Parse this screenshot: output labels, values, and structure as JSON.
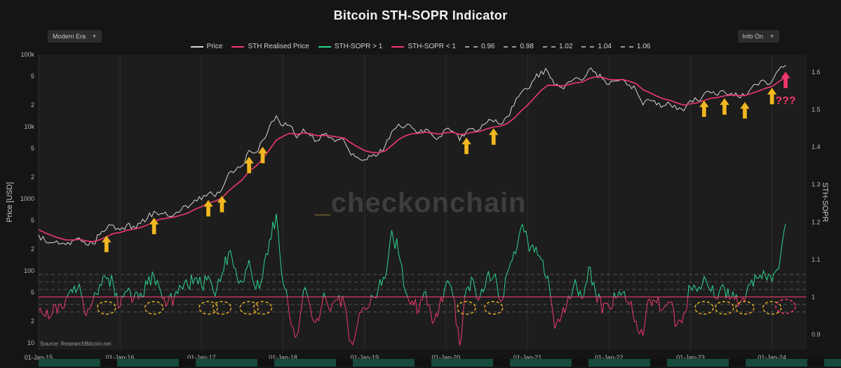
{
  "header": {
    "title": "Bitcoin STH-SOPR Indicator",
    "era_dropdown": {
      "label": "Modern Era",
      "caret": "▼"
    },
    "info_dropdown": {
      "label": "Info On",
      "caret": "▼"
    }
  },
  "legend": {
    "items": [
      {
        "label": "Price",
        "color": "#d6d6d6",
        "dash": "solid"
      },
      {
        "label": "STH Realised Price",
        "color": "#f0386e",
        "dash": "solid"
      },
      {
        "label": "STH-SOPR > 1",
        "color": "#2bd48e",
        "dash": "solid"
      },
      {
        "label": "STH-SOPR < 1",
        "color": "#f0386e",
        "dash": "solid"
      },
      {
        "label": "0.96",
        "color": "#9a9a9a",
        "dash": "dashed"
      },
      {
        "label": "0.98",
        "color": "#9a9a9a",
        "dash": "dashed"
      },
      {
        "label": "1.02",
        "color": "#9a9a9a",
        "dash": "dashed"
      },
      {
        "label": "1.04",
        "color": "#9a9a9a",
        "dash": "dashed"
      },
      {
        "label": "1.06",
        "color": "#9a9a9a",
        "dash": "dashed"
      }
    ]
  },
  "watermark": {
    "prefix": "_",
    "name": "checkonchain"
  },
  "source": "Source: ResearchBitcoin.net",
  "chart_data": {
    "type": "line",
    "title": "Bitcoin STH-SOPR Indicator",
    "x_unit": "month",
    "x_start": "Jan-2015",
    "x_ticks": [
      {
        "month": 0,
        "label": "01-Jan-15"
      },
      {
        "month": 12,
        "label": "01-Jan-16"
      },
      {
        "month": 24,
        "label": "01-Jan-17"
      },
      {
        "month": 36,
        "label": "01-Jan-18"
      },
      {
        "month": 48,
        "label": "01-Jan-19"
      },
      {
        "month": 60,
        "label": "01-Jan-20"
      },
      {
        "month": 72,
        "label": "01-Jan-21"
      },
      {
        "month": 84,
        "label": "01-Jan-22"
      },
      {
        "month": 96,
        "label": "01-Jan-23"
      },
      {
        "month": 108,
        "label": "01-Jan-24"
      }
    ],
    "left_axis": {
      "label": "Price [USD]",
      "scale": "log",
      "range": [
        10,
        100000
      ],
      "ticks": [
        {
          "value": 100000,
          "label": "100k"
        },
        {
          "value": 50000,
          "label": "5"
        },
        {
          "value": 20000,
          "label": "2"
        },
        {
          "value": 10000,
          "label": "10k"
        },
        {
          "value": 5000,
          "label": "5"
        },
        {
          "value": 2000,
          "label": "2"
        },
        {
          "value": 1000,
          "label": "1000"
        },
        {
          "value": 500,
          "label": "5"
        },
        {
          "value": 200,
          "label": "2"
        },
        {
          "value": 100,
          "label": "100"
        },
        {
          "value": 50,
          "label": "5"
        },
        {
          "value": 20,
          "label": "2"
        },
        {
          "value": 10,
          "label": "10"
        }
      ]
    },
    "right_axis": {
      "label": "STH-SOPR",
      "scale": "linear",
      "range": [
        0.9,
        1.6
      ],
      "ticks": [
        {
          "value": 0.9,
          "label": "0.9"
        },
        {
          "value": 1,
          "label": "1"
        },
        {
          "value": 1.1,
          "label": "1.1"
        },
        {
          "value": 1.2,
          "label": "1.2"
        },
        {
          "value": 1.3,
          "label": "1.3"
        },
        {
          "value": 1.4,
          "label": "1.4"
        },
        {
          "value": 1.5,
          "label": "1.5"
        },
        {
          "value": 1.6,
          "label": "1.6"
        }
      ]
    },
    "series": [
      {
        "name": "Price",
        "axis": "left",
        "color": "#d6d6d6",
        "values": [
          315,
          255,
          245,
          235,
          230,
          265,
          285,
          230,
          236,
          315,
          378,
          430,
          368,
          437,
          416,
          450,
          530,
          670,
          625,
          575,
          610,
          700,
          745,
          960,
          970,
          1180,
          1070,
          1350,
          2280,
          2480,
          2875,
          4700,
          4360,
          6470,
          10200,
          14100,
          10200,
          10400,
          6970,
          9240,
          7500,
          6400,
          7780,
          7040,
          6620,
          6320,
          4020,
          3740,
          3460,
          3850,
          4100,
          5350,
          8570,
          10820,
          10080,
          9630,
          8290,
          9200,
          7570,
          7190,
          9350,
          8600,
          6440,
          8660,
          9460,
          9140,
          11350,
          11660,
          10780,
          13800,
          19700,
          29000,
          33100,
          45200,
          58800,
          57750,
          37300,
          35000,
          41600,
          47200,
          43800,
          61300,
          57000,
          46300,
          38500,
          43200,
          45500,
          37700,
          31800,
          20000,
          23300,
          20050,
          19400,
          20500,
          17200,
          16550,
          23100,
          23150,
          28500,
          29270,
          27200,
          30500,
          29200,
          25900,
          27000,
          34700,
          37700,
          42300,
          42600,
          61200,
          71300
        ]
      },
      {
        "name": "STH-SOPR",
        "axis": "right",
        "color_above_1": "#2bd48e",
        "color_below_1": "#f0386e",
        "values": [
          0.97,
          0.95,
          0.96,
          0.98,
          0.99,
          1.01,
          1.03,
          0.95,
          0.99,
          1.03,
          1.05,
          1.04,
          0.97,
          1.02,
          1.0,
          1.01,
          1.03,
          1.06,
          1.02,
          0.98,
          1.0,
          1.02,
          1.03,
          1.05,
          1.03,
          1.05,
          1.0,
          1.06,
          1.12,
          1.07,
          1.04,
          1.1,
          1.02,
          1.06,
          1.15,
          1.22,
          1.04,
          0.95,
          0.89,
          1.02,
          0.97,
          0.94,
          1.01,
          0.96,
          0.99,
          0.98,
          0.88,
          0.93,
          0.97,
          1.0,
          1.02,
          1.05,
          1.18,
          1.12,
          1.02,
          0.99,
          0.96,
          1.02,
          0.93,
          0.97,
          1.04,
          1.01,
          0.87,
          1.02,
          1.04,
          1.0,
          1.05,
          1.06,
          0.99,
          1.06,
          1.12,
          1.18,
          1.15,
          1.12,
          1.1,
          1.06,
          0.92,
          0.95,
          1.0,
          1.05,
          0.99,
          1.08,
          1.02,
          0.96,
          0.97,
          1.0,
          1.01,
          0.98,
          0.93,
          0.9,
          1.0,
          0.99,
          0.97,
          0.99,
          0.92,
          0.96,
          1.03,
          1.02,
          1.05,
          1.02,
          0.99,
          1.02,
          1.0,
          0.98,
          0.99,
          1.04,
          1.05,
          1.06,
          1.04,
          1.08,
          1.2
        ]
      },
      {
        "name": "STH Realised Price",
        "axis": "left",
        "color": "#f0386e",
        "derivation": "smoothed trace of Price series"
      }
    ],
    "sopr_thresholds": [
      0.96,
      0.98,
      1.02,
      1.04,
      1.06
    ],
    "sopr_baseline": 1,
    "colors": {
      "price": "#d6d6d6",
      "realised": "#f0386e",
      "sopr_above": "#2bd48e",
      "sopr_below": "#f0386e",
      "arrow": "#f2b722",
      "grid": "#2e2e2e",
      "threshold": "#8a8a8a",
      "plot_bg": "#1d1d1d"
    },
    "annotations": {
      "arrow_months": [
        10,
        17,
        25,
        27,
        31,
        33,
        63,
        67,
        98,
        101,
        104,
        108
      ],
      "circle_months": [
        10,
        17,
        25,
        27,
        31,
        33,
        63,
        67,
        98,
        101,
        104,
        108
      ],
      "pink_month": 110,
      "question_label": "???"
    },
    "legend_position": "top"
  }
}
